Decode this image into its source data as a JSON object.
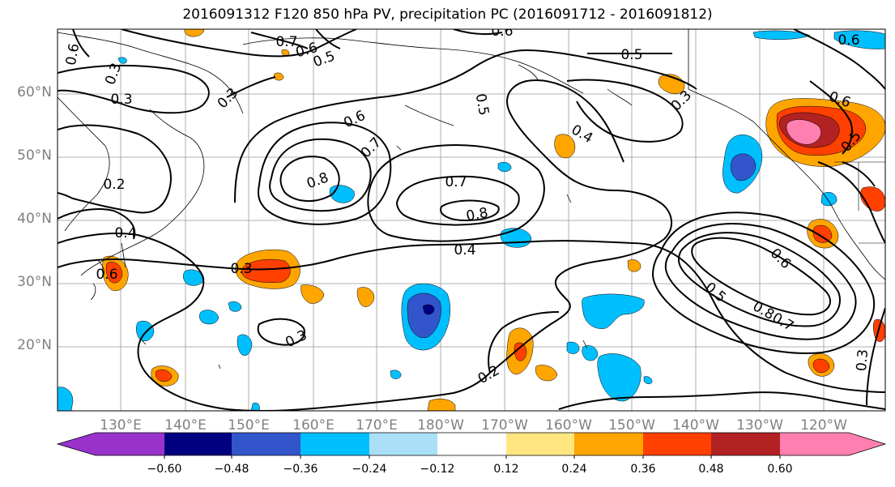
{
  "title": "2016091312 F120 850 hPa PV, precipitation PC (2016091712 - 2016091812)",
  "map": {
    "lat_labels": [
      "60°N",
      "50°N",
      "40°N",
      "30°N",
      "20°N"
    ],
    "lon_labels": [
      "130°E",
      "140°E",
      "150°E",
      "160°E",
      "170°E",
      "180°W",
      "170°W",
      "160°W",
      "150°W",
      "140°W",
      "130°W",
      "120°W"
    ],
    "contour_labels": [
      "0.7",
      "0.6",
      "0.5",
      "0.3",
      "0.3",
      "0.6",
      "0.5",
      "0.5",
      "0.6",
      "0.6",
      "0.7",
      "0.8",
      "0.2",
      "0.4",
      "0.3",
      "0.6",
      "0.7",
      "0.8",
      "0.4",
      "0.4",
      "0.3",
      "0.3",
      "0.2",
      "0.5",
      "0.8",
      "0.7",
      "0.3",
      "0.6",
      "0.3",
      "0.6",
      "0.5",
      "0.6"
    ],
    "colors": {
      "neg_060": "#9933cc",
      "neg_048": "#000080",
      "neg_036": "#3355cc",
      "neg_024": "#00bfff",
      "neg_012": "#aadff8",
      "pos_012": "#ffe680",
      "pos_024": "#ffa500",
      "pos_036": "#ff4000",
      "pos_048": "#b22222",
      "pos_060": "#ff80b0"
    }
  },
  "colorbar": {
    "ticks": [
      "−0.60",
      "−0.48",
      "−0.36",
      "−0.24",
      "−0.12",
      "0.12",
      "0.24",
      "0.36",
      "0.48",
      "0.60"
    ],
    "colors": [
      "#9933cc",
      "#000080",
      "#3355cc",
      "#00bfff",
      "#aadff8",
      "#ffffff",
      "#ffe680",
      "#ffa500",
      "#ff4000",
      "#b22222",
      "#ff80b0"
    ]
  }
}
